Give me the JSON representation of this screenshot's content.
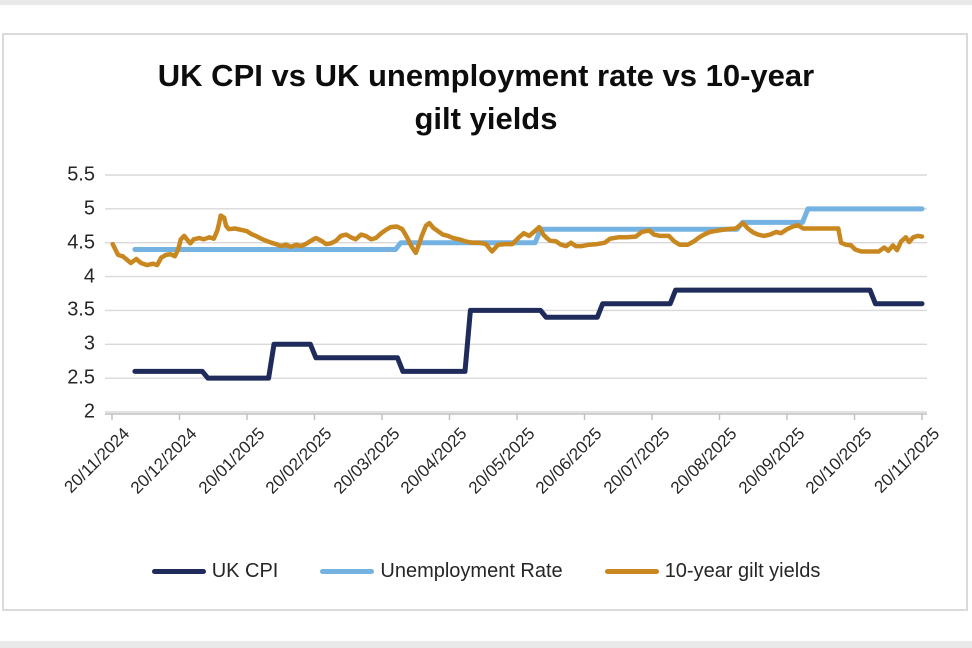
{
  "page": {
    "background": "#ffffff",
    "edge_strip_color": "#e9e9e9",
    "frame_border_color": "#dadada"
  },
  "chart_data": {
    "type": "line",
    "title": "UK CPI vs UK unemployment rate vs 10-year gilt yields",
    "x_axis": {
      "tick_labels": [
        "20/11/2024",
        "20/12/2024",
        "20/01/2025",
        "20/02/2025",
        "20/03/2025",
        "20/04/2025",
        "20/05/2025",
        "20/06/2025",
        "20/07/2025",
        "20/08/2025",
        "20/09/2025",
        "20/10/2025",
        "20/11/2025"
      ],
      "note_x_unit": "months since 20/11/2024",
      "range_months": [
        0,
        12
      ]
    },
    "y_axis": {
      "min": 2,
      "max": 5.5,
      "step": 0.5,
      "tick_labels": [
        "2",
        "2.5",
        "3",
        "3.5",
        "4",
        "4.5",
        "5",
        "5.5"
      ]
    },
    "grid": "horizontal",
    "legend_position": "bottom",
    "colors": {
      "gridline": "#d9d9d9",
      "axis": "#bfbfbf",
      "tick_text": "#262626",
      "title_text": "#0d0d0d"
    },
    "series": [
      {
        "name": "UK CPI",
        "color": "#1f2b5b",
        "width": 5,
        "line_style": "step",
        "points": [
          [
            0.34,
            2.6
          ],
          [
            1.38,
            2.5
          ],
          [
            2.36,
            3.0
          ],
          [
            2.98,
            2.8
          ],
          [
            4.27,
            2.6
          ],
          [
            5.27,
            3.5
          ],
          [
            6.39,
            3.4
          ],
          [
            7.23,
            3.6
          ],
          [
            8.31,
            3.8
          ],
          [
            11.27,
            3.6
          ],
          [
            12,
            3.6
          ]
        ]
      },
      {
        "name": "Unemployment Rate",
        "color": "#74b2e2",
        "width": 5,
        "line_style": "step",
        "points": [
          [
            0.34,
            4.4
          ],
          [
            4.24,
            4.5
          ],
          [
            6.31,
            4.7
          ],
          [
            9.3,
            4.8
          ],
          [
            10.27,
            5.0
          ],
          [
            12,
            5.0
          ]
        ]
      },
      {
        "name": "10-year gilt yields",
        "color": "#c9871f",
        "width": 4.5,
        "line_style": "line",
        "points": [
          [
            0.01,
            4.48
          ],
          [
            0.09,
            4.32
          ],
          [
            0.16,
            4.3
          ],
          [
            0.22,
            4.25
          ],
          [
            0.28,
            4.2
          ],
          [
            0.36,
            4.26
          ],
          [
            0.43,
            4.2
          ],
          [
            0.52,
            4.17
          ],
          [
            0.61,
            4.19
          ],
          [
            0.67,
            4.17
          ],
          [
            0.73,
            4.28
          ],
          [
            0.8,
            4.32
          ],
          [
            0.87,
            4.33
          ],
          [
            0.93,
            4.3
          ],
          [
            0.98,
            4.4
          ],
          [
            1.02,
            4.55
          ],
          [
            1.07,
            4.6
          ],
          [
            1.11,
            4.55
          ],
          [
            1.16,
            4.49
          ],
          [
            1.21,
            4.55
          ],
          [
            1.29,
            4.57
          ],
          [
            1.36,
            4.55
          ],
          [
            1.44,
            4.58
          ],
          [
            1.51,
            4.56
          ],
          [
            1.56,
            4.68
          ],
          [
            1.59,
            4.8
          ],
          [
            1.61,
            4.9
          ],
          [
            1.66,
            4.87
          ],
          [
            1.69,
            4.75
          ],
          [
            1.73,
            4.7
          ],
          [
            1.82,
            4.71
          ],
          [
            1.91,
            4.69
          ],
          [
            2.0,
            4.67
          ],
          [
            2.06,
            4.63
          ],
          [
            2.13,
            4.6
          ],
          [
            2.21,
            4.56
          ],
          [
            2.28,
            4.53
          ],
          [
            2.36,
            4.5
          ],
          [
            2.43,
            4.48
          ],
          [
            2.5,
            4.45
          ],
          [
            2.58,
            4.47
          ],
          [
            2.65,
            4.44
          ],
          [
            2.73,
            4.47
          ],
          [
            2.8,
            4.45
          ],
          [
            2.87,
            4.48
          ],
          [
            2.95,
            4.53
          ],
          [
            3.02,
            4.57
          ],
          [
            3.1,
            4.53
          ],
          [
            3.17,
            4.48
          ],
          [
            3.24,
            4.49
          ],
          [
            3.32,
            4.53
          ],
          [
            3.39,
            4.6
          ],
          [
            3.47,
            4.62
          ],
          [
            3.54,
            4.58
          ],
          [
            3.61,
            4.55
          ],
          [
            3.69,
            4.62
          ],
          [
            3.76,
            4.6
          ],
          [
            3.84,
            4.55
          ],
          [
            3.91,
            4.57
          ],
          [
            3.99,
            4.64
          ],
          [
            4.06,
            4.69
          ],
          [
            4.13,
            4.73
          ],
          [
            4.22,
            4.74
          ],
          [
            4.3,
            4.7
          ],
          [
            4.37,
            4.58
          ],
          [
            4.44,
            4.44
          ],
          [
            4.5,
            4.35
          ],
          [
            4.55,
            4.48
          ],
          [
            4.59,
            4.6
          ],
          [
            4.65,
            4.75
          ],
          [
            4.7,
            4.79
          ],
          [
            4.76,
            4.72
          ],
          [
            4.83,
            4.67
          ],
          [
            4.9,
            4.62
          ],
          [
            4.98,
            4.6
          ],
          [
            5.05,
            4.57
          ],
          [
            5.14,
            4.55
          ],
          [
            5.24,
            4.52
          ],
          [
            5.33,
            4.5
          ],
          [
            5.44,
            4.5
          ],
          [
            5.54,
            4.48
          ],
          [
            5.63,
            4.37
          ],
          [
            5.72,
            4.47
          ],
          [
            5.82,
            4.48
          ],
          [
            5.93,
            4.48
          ],
          [
            6.03,
            4.58
          ],
          [
            6.1,
            4.64
          ],
          [
            6.18,
            4.6
          ],
          [
            6.25,
            4.66
          ],
          [
            6.33,
            4.73
          ],
          [
            6.39,
            4.62
          ],
          [
            6.44,
            4.57
          ],
          [
            6.49,
            4.53
          ],
          [
            6.58,
            4.52
          ],
          [
            6.65,
            4.47
          ],
          [
            6.73,
            4.45
          ],
          [
            6.8,
            4.5
          ],
          [
            6.87,
            4.45
          ],
          [
            6.96,
            4.45
          ],
          [
            7.07,
            4.47
          ],
          [
            7.19,
            4.48
          ],
          [
            7.3,
            4.5
          ],
          [
            7.38,
            4.56
          ],
          [
            7.5,
            4.58
          ],
          [
            7.63,
            4.58
          ],
          [
            7.76,
            4.59
          ],
          [
            7.85,
            4.66
          ],
          [
            7.96,
            4.68
          ],
          [
            8.03,
            4.62
          ],
          [
            8.12,
            4.6
          ],
          [
            8.25,
            4.6
          ],
          [
            8.33,
            4.52
          ],
          [
            8.41,
            4.47
          ],
          [
            8.53,
            4.47
          ],
          [
            8.62,
            4.52
          ],
          [
            8.7,
            4.58
          ],
          [
            8.77,
            4.62
          ],
          [
            8.86,
            4.66
          ],
          [
            8.98,
            4.68
          ],
          [
            9.11,
            4.7
          ],
          [
            9.24,
            4.71
          ],
          [
            9.35,
            4.79
          ],
          [
            9.42,
            4.71
          ],
          [
            9.5,
            4.65
          ],
          [
            9.57,
            4.62
          ],
          [
            9.66,
            4.6
          ],
          [
            9.75,
            4.62
          ],
          [
            9.84,
            4.66
          ],
          [
            9.91,
            4.64
          ],
          [
            10.0,
            4.7
          ],
          [
            10.09,
            4.74
          ],
          [
            10.16,
            4.76
          ],
          [
            10.24,
            4.71
          ],
          [
            10.37,
            4.71
          ],
          [
            10.52,
            4.71
          ],
          [
            10.65,
            4.71
          ],
          [
            10.76,
            4.71
          ],
          [
            10.8,
            4.5
          ],
          [
            10.87,
            4.47
          ],
          [
            10.95,
            4.46
          ],
          [
            11.01,
            4.4
          ],
          [
            11.1,
            4.37
          ],
          [
            11.23,
            4.37
          ],
          [
            11.36,
            4.37
          ],
          [
            11.44,
            4.43
          ],
          [
            11.5,
            4.38
          ],
          [
            11.57,
            4.46
          ],
          [
            11.63,
            4.39
          ],
          [
            11.69,
            4.52
          ],
          [
            11.76,
            4.58
          ],
          [
            11.81,
            4.51
          ],
          [
            11.87,
            4.58
          ],
          [
            11.94,
            4.6
          ],
          [
            12.0,
            4.59
          ]
        ]
      }
    ]
  }
}
